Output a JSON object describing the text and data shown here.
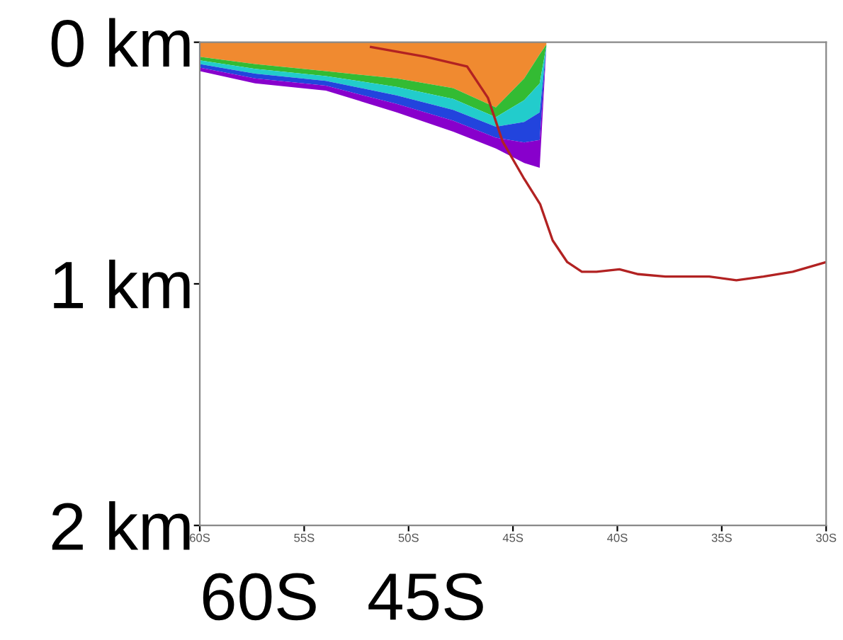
{
  "chart_data": {
    "type": "area",
    "stacked": true,
    "x": [
      -60,
      -57.35,
      -53.96,
      -50.57,
      -47.86,
      -45.82,
      -44.46,
      -43.72,
      -43.4
    ],
    "series": [
      {
        "color": "#f08a30",
        "values": [
          0.06,
          0.09,
          0.12,
          0.15,
          0.19,
          0.27,
          0.15,
          0.05,
          0.01
        ]
      },
      {
        "color": "#33bb33",
        "values": [
          0.015,
          0.02,
          0.02,
          0.035,
          0.045,
          0.04,
          0.09,
          0.12,
          0.005
        ]
      },
      {
        "color": "#22cccc",
        "values": [
          0.015,
          0.02,
          0.02,
          0.035,
          0.045,
          0.04,
          0.09,
          0.12,
          0.005
        ]
      },
      {
        "color": "#2244dd",
        "values": [
          0.015,
          0.02,
          0.02,
          0.035,
          0.045,
          0.045,
          0.085,
          0.115,
          0
        ]
      },
      {
        "color": "#8800cc",
        "values": [
          0.015,
          0.02,
          0.02,
          0.035,
          0.045,
          0.045,
          0.085,
          0.115,
          0
        ]
      },
      {
        "type": "line",
        "color": "#b22222",
        "x": [
          -51.8,
          -49.2,
          -47.2,
          -46.2,
          -45.5,
          -44.5,
          -43.7,
          -43.1,
          -42.4,
          -41.7,
          -41.0,
          -39.9,
          -39.0,
          -37.7,
          -35.6,
          -34.3,
          -33.0,
          -31.6,
          -30
        ],
        "values": [
          0.02,
          0.06,
          0.1,
          0.23,
          0.41,
          0.56,
          0.67,
          0.82,
          0.91,
          0.95,
          0.95,
          0.94,
          0.96,
          0.97,
          0.97,
          0.985,
          0.97,
          0.95,
          0.91
        ]
      }
    ],
    "xlim": [
      -60,
      -30
    ],
    "xticks": [
      {
        "value": -60,
        "label": "60S"
      },
      {
        "value": -55,
        "label": "55S"
      },
      {
        "value": -50,
        "label": "50S"
      },
      {
        "value": -45,
        "label": "45S"
      },
      {
        "value": -40,
        "label": "40S"
      },
      {
        "value": -35,
        "label": "35S"
      },
      {
        "value": -30,
        "label": "30S"
      }
    ],
    "ylim": [
      2,
      0
    ],
    "yticks": [
      {
        "value": 0,
        "label": "0 km"
      },
      {
        "value": 1,
        "label": "1 km"
      },
      {
        "value": 2,
        "label": "2 km"
      }
    ],
    "annotations": [
      "60S",
      "45S"
    ]
  }
}
